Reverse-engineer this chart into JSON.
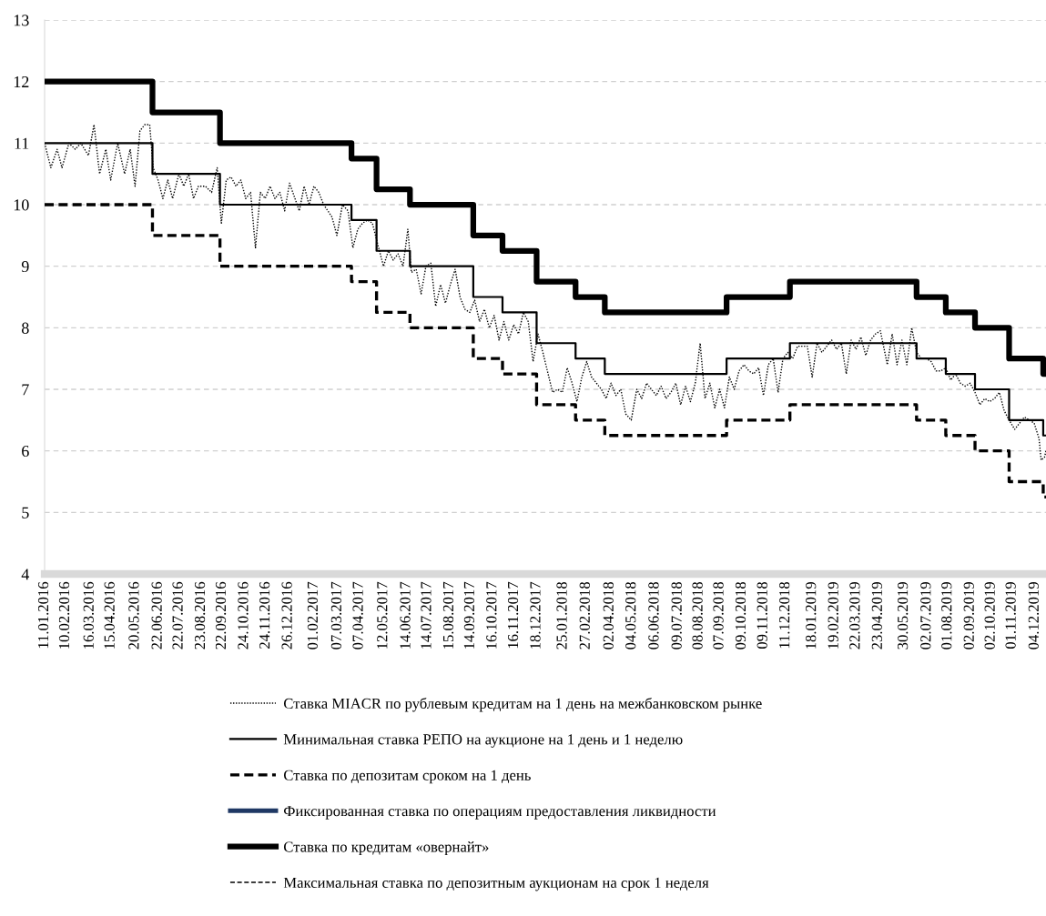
{
  "chart_data": {
    "type": "step",
    "xlim": [
      "2016-01-11",
      "2019-12-20"
    ],
    "xticks": [
      {
        "value": "2016-01-11",
        "label": "11.01.2016"
      },
      {
        "value": "2016-02-10",
        "label": "10.02.2016"
      },
      {
        "value": "2016-03-16",
        "label": "16.03.2016"
      },
      {
        "value": "2016-04-15",
        "label": "15.04.2016"
      },
      {
        "value": "2016-05-20",
        "label": "20.05.2016"
      },
      {
        "value": "2016-06-22",
        "label": "22.06.2016"
      },
      {
        "value": "2016-07-22",
        "label": "22.07.2016"
      },
      {
        "value": "2016-08-23",
        "label": "23.08.2016"
      },
      {
        "value": "2016-09-22",
        "label": "22.09.2016"
      },
      {
        "value": "2016-10-24",
        "label": "24.10.2016"
      },
      {
        "value": "2016-11-24",
        "label": "24.11.2016"
      },
      {
        "value": "2016-12-26",
        "label": "26.12.2016"
      },
      {
        "value": "2017-02-01",
        "label": "01.02.2017"
      },
      {
        "value": "2017-03-07",
        "label": "07.03.2017"
      },
      {
        "value": "2017-04-07",
        "label": "07.04.2017"
      },
      {
        "value": "2017-05-12",
        "label": "12.05.2017"
      },
      {
        "value": "2017-06-14",
        "label": "14.06.2017"
      },
      {
        "value": "2017-07-14",
        "label": "14.07.2017"
      },
      {
        "value": "2017-08-15",
        "label": "15.08.2017"
      },
      {
        "value": "2017-09-14",
        "label": "14.09.2017"
      },
      {
        "value": "2017-10-16",
        "label": "16.10.2017"
      },
      {
        "value": "2017-11-16",
        "label": "16.11.2017"
      },
      {
        "value": "2017-12-18",
        "label": "18.12.2017"
      },
      {
        "value": "2018-01-25",
        "label": "25.01.2018"
      },
      {
        "value": "2018-02-27",
        "label": "27.02.2018"
      },
      {
        "value": "2018-04-02",
        "label": "02.04.2018"
      },
      {
        "value": "2018-05-04",
        "label": "04.05.2018"
      },
      {
        "value": "2018-06-06",
        "label": "06.06.2018"
      },
      {
        "value": "2018-07-09",
        "label": "09.07.2018"
      },
      {
        "value": "2018-08-08",
        "label": "08.08.2018"
      },
      {
        "value": "2018-09-07",
        "label": "07.09.2018"
      },
      {
        "value": "2018-10-09",
        "label": "09.10.2018"
      },
      {
        "value": "2018-11-09",
        "label": "09.11.2018"
      },
      {
        "value": "2018-12-11",
        "label": "11.12.2018"
      },
      {
        "value": "2019-01-18",
        "label": "18.01.2019"
      },
      {
        "value": "2019-02-19",
        "label": "19.02.2019"
      },
      {
        "value": "2019-03-22",
        "label": "22.03.2019"
      },
      {
        "value": "2019-04-23",
        "label": "23.04.2019"
      },
      {
        "value": "2019-05-30",
        "label": "30.05.2019"
      },
      {
        "value": "2019-07-02",
        "label": "02.07.2019"
      },
      {
        "value": "2019-08-01",
        "label": "01.08.2019"
      },
      {
        "value": "2019-09-02",
        "label": "02.09.2019"
      },
      {
        "value": "2019-10-02",
        "label": "02.10.2019"
      },
      {
        "value": "2019-11-01",
        "label": "01.11.2019"
      },
      {
        "value": "2019-12-04",
        "label": "04.12.2019"
      }
    ],
    "ylim": [
      4,
      13
    ],
    "yticks": [
      4,
      5,
      6,
      7,
      8,
      9,
      10,
      11,
      12,
      13
    ],
    "grid": "y",
    "legend": "bottom",
    "series": [
      {
        "name": "Ставка MIACR по рублевым кредитам на 1 день на межбанковском рынке",
        "type": "line",
        "line_style": "dotted",
        "color": "#000000",
        "x": [
          "2016-01-11",
          "2016-01-20",
          "2016-01-29",
          "2016-02-05",
          "2016-02-15",
          "2016-02-24",
          "2016-03-03",
          "2016-03-14",
          "2016-03-22",
          "2016-03-30",
          "2016-04-08",
          "2016-04-15",
          "2016-04-25",
          "2016-05-05",
          "2016-05-13",
          "2016-05-20",
          "2016-05-27",
          "2016-06-03",
          "2016-06-10",
          "2016-06-15",
          "2016-06-22",
          "2016-06-29",
          "2016-07-06",
          "2016-07-13",
          "2016-07-22",
          "2016-07-29",
          "2016-08-05",
          "2016-08-12",
          "2016-08-19",
          "2016-08-29",
          "2016-09-07",
          "2016-09-15",
          "2016-09-21",
          "2016-09-28",
          "2016-10-05",
          "2016-10-12",
          "2016-10-19",
          "2016-10-26",
          "2016-11-02",
          "2016-11-09",
          "2016-11-16",
          "2016-11-23",
          "2016-11-30",
          "2016-12-07",
          "2016-12-14",
          "2016-12-21",
          "2016-12-28",
          "2017-01-11",
          "2017-01-18",
          "2017-01-25",
          "2017-02-01",
          "2017-02-08",
          "2017-02-15",
          "2017-02-27",
          "2017-03-06",
          "2017-03-14",
          "2017-03-22",
          "2017-03-29",
          "2017-04-05",
          "2017-04-12",
          "2017-04-19",
          "2017-04-26",
          "2017-05-05",
          "2017-05-12",
          "2017-05-19",
          "2017-05-26",
          "2017-06-02",
          "2017-06-09",
          "2017-06-16",
          "2017-06-21",
          "2017-06-28",
          "2017-07-05",
          "2017-07-12",
          "2017-07-19",
          "2017-07-26",
          "2017-08-02",
          "2017-08-09",
          "2017-08-16",
          "2017-08-23",
          "2017-08-30",
          "2017-09-06",
          "2017-09-13",
          "2017-09-20",
          "2017-09-27",
          "2017-10-04",
          "2017-10-11",
          "2017-10-18",
          "2017-10-25",
          "2017-11-01",
          "2017-11-08",
          "2017-11-15",
          "2017-11-22",
          "2017-11-29",
          "2017-12-06",
          "2017-12-13",
          "2017-12-20",
          "2017-12-27",
          "2018-01-10",
          "2018-01-17",
          "2018-01-24",
          "2018-01-31",
          "2018-02-07",
          "2018-02-14",
          "2018-02-21",
          "2018-02-28",
          "2018-03-07",
          "2018-03-14",
          "2018-03-21",
          "2018-03-28",
          "2018-04-04",
          "2018-04-11",
          "2018-04-18",
          "2018-04-25",
          "2018-05-03",
          "2018-05-11",
          "2018-05-18",
          "2018-05-25",
          "2018-06-01",
          "2018-06-08",
          "2018-06-15",
          "2018-06-22",
          "2018-06-29",
          "2018-07-06",
          "2018-07-13",
          "2018-07-20",
          "2018-07-27",
          "2018-08-03",
          "2018-08-10",
          "2018-08-17",
          "2018-08-24",
          "2018-08-31",
          "2018-09-07",
          "2018-09-14",
          "2018-09-21",
          "2018-09-28",
          "2018-10-05",
          "2018-10-12",
          "2018-10-19",
          "2018-10-26",
          "2018-11-02",
          "2018-11-09",
          "2018-11-16",
          "2018-11-23",
          "2018-11-30",
          "2018-12-07",
          "2018-12-14",
          "2018-12-21",
          "2018-12-28",
          "2019-01-11",
          "2019-01-18",
          "2019-01-25",
          "2019-02-01",
          "2019-02-08",
          "2019-02-15",
          "2019-02-22",
          "2019-03-01",
          "2019-03-08",
          "2019-03-15",
          "2019-03-22",
          "2019-03-29",
          "2019-04-05",
          "2019-04-12",
          "2019-04-19",
          "2019-04-26",
          "2019-05-06",
          "2019-05-13",
          "2019-05-20",
          "2019-05-27",
          "2019-06-03",
          "2019-06-10",
          "2019-06-17",
          "2019-06-24",
          "2019-07-01",
          "2019-07-08",
          "2019-07-15",
          "2019-07-22",
          "2019-07-29",
          "2019-08-05",
          "2019-08-12",
          "2019-08-19",
          "2019-08-26",
          "2019-09-02",
          "2019-09-09",
          "2019-09-16",
          "2019-09-23",
          "2019-09-30",
          "2019-10-07",
          "2019-10-14",
          "2019-10-21",
          "2019-10-28",
          "2019-11-05",
          "2019-11-12",
          "2019-11-19",
          "2019-11-26",
          "2019-12-03",
          "2019-12-10",
          "2019-12-13",
          "2019-12-18",
          "2019-12-20"
        ],
        "values": [
          11.0,
          10.6,
          10.9,
          10.6,
          11.0,
          10.9,
          11.0,
          10.8,
          11.3,
          10.5,
          10.9,
          10.4,
          11.0,
          10.5,
          10.9,
          10.3,
          11.2,
          11.3,
          11.3,
          10.6,
          10.4,
          10.1,
          10.4,
          10.1,
          10.5,
          10.3,
          10.5,
          10.1,
          10.3,
          10.3,
          10.2,
          10.6,
          9.7,
          10.4,
          10.45,
          10.3,
          10.4,
          10.1,
          10.2,
          9.3,
          10.2,
          10.1,
          10.3,
          10.1,
          10.2,
          9.9,
          10.35,
          9.9,
          10.3,
          10.0,
          10.3,
          10.2,
          10.0,
          9.8,
          9.5,
          10.0,
          9.9,
          9.3,
          9.6,
          9.7,
          9.75,
          9.7,
          9.3,
          9.0,
          9.25,
          9.1,
          9.2,
          9.0,
          9.6,
          8.9,
          8.95,
          8.55,
          9.0,
          9.05,
          8.35,
          8.7,
          8.4,
          8.7,
          8.95,
          8.5,
          8.3,
          8.25,
          8.45,
          8.1,
          8.3,
          8.0,
          8.2,
          7.8,
          8.1,
          7.8,
          8.05,
          7.9,
          8.25,
          8.1,
          7.45,
          7.9,
          7.6,
          6.95,
          7.0,
          6.95,
          7.35,
          7.1,
          6.8,
          7.2,
          7.45,
          7.2,
          7.1,
          7.0,
          6.85,
          7.1,
          6.9,
          7.0,
          6.6,
          6.5,
          7.0,
          6.85,
          7.1,
          7.0,
          6.9,
          7.05,
          6.85,
          6.95,
          7.1,
          6.75,
          7.05,
          6.8,
          7.1,
          7.75,
          6.85,
          7.1,
          6.7,
          7.0,
          6.7,
          7.2,
          7.0,
          7.3,
          7.4,
          7.3,
          7.25,
          7.35,
          6.9,
          7.4,
          7.5,
          6.95,
          7.5,
          7.6,
          7.5,
          7.7,
          7.7,
          7.2,
          7.75,
          7.6,
          7.7,
          7.8,
          7.65,
          7.75,
          7.25,
          7.8,
          7.65,
          7.85,
          7.55,
          7.8,
          7.9,
          7.95,
          7.4,
          7.9,
          7.4,
          7.8,
          7.4,
          8.0,
          7.6,
          7.5,
          7.5,
          7.45,
          7.3,
          7.3,
          7.35,
          7.15,
          7.25,
          7.1,
          7.05,
          7.1,
          6.95,
          6.75,
          6.85,
          6.8,
          6.85,
          6.95,
          6.65,
          6.5,
          6.35,
          6.45,
          6.55,
          6.5,
          6.45,
          6.2,
          5.85,
          5.9,
          6.0
        ]
      },
      {
        "name": "Минимальная ставка РЕПО на аукционе на 1 день и 1 неделю",
        "line_style": "solid",
        "color": "#000000",
        "x": [
          "2016-01-11",
          "2016-06-14",
          "2016-09-19",
          "2017-03-27",
          "2017-05-02",
          "2017-06-19",
          "2017-09-18",
          "2017-10-30",
          "2017-12-18",
          "2018-02-12",
          "2018-03-26",
          "2018-09-17",
          "2018-12-17",
          "2019-06-17",
          "2019-07-29",
          "2019-09-09",
          "2019-10-28",
          "2019-12-16",
          "2019-12-20"
        ],
        "values": [
          11.0,
          10.5,
          10.0,
          9.75,
          9.25,
          9.0,
          8.5,
          8.25,
          7.75,
          7.5,
          7.25,
          7.5,
          7.75,
          7.5,
          7.25,
          7.0,
          6.5,
          6.25,
          6.25
        ]
      },
      {
        "name": "Ставка по депозитам сроком на 1 день",
        "line_style": "dashed",
        "color": "#000000",
        "x": [
          "2016-01-11",
          "2016-06-14",
          "2016-09-19",
          "2017-03-27",
          "2017-05-02",
          "2017-06-19",
          "2017-09-18",
          "2017-10-30",
          "2017-12-18",
          "2018-02-12",
          "2018-03-26",
          "2018-09-17",
          "2018-12-17",
          "2019-06-17",
          "2019-07-29",
          "2019-09-09",
          "2019-10-28",
          "2019-12-16",
          "2019-12-20"
        ],
        "values": [
          10.0,
          9.5,
          9.0,
          8.75,
          8.25,
          8.0,
          7.5,
          7.25,
          6.75,
          6.5,
          6.25,
          6.5,
          6.75,
          6.5,
          6.25,
          6.0,
          5.5,
          5.25,
          5.25
        ]
      },
      {
        "name": "Фиксированная ставка по операциям предоставления ликвидности",
        "line_style": "solid",
        "color": "#1f3864",
        "type": "line"
      },
      {
        "name": "Ставка по кредитам «овернайт»",
        "line_style": "solid",
        "color": "#000000",
        "x": [
          "2016-01-11",
          "2016-06-14",
          "2016-09-19",
          "2017-03-27",
          "2017-05-02",
          "2017-06-19",
          "2017-09-18",
          "2017-10-30",
          "2017-12-18",
          "2018-02-12",
          "2018-03-26",
          "2018-09-17",
          "2018-12-17",
          "2019-06-17",
          "2019-07-29",
          "2019-09-09",
          "2019-10-28",
          "2019-12-16",
          "2019-12-20"
        ],
        "values": [
          12.0,
          11.5,
          11.0,
          10.75,
          10.25,
          10.0,
          9.5,
          9.25,
          8.75,
          8.5,
          8.25,
          8.5,
          8.75,
          8.5,
          8.25,
          8.0,
          7.5,
          7.25,
          7.25
        ]
      },
      {
        "name": "Максимальная ставка по депозитным аукционам на срок 1 неделя",
        "line_style": "dashed",
        "color": "#000000",
        "type": "line"
      }
    ]
  }
}
